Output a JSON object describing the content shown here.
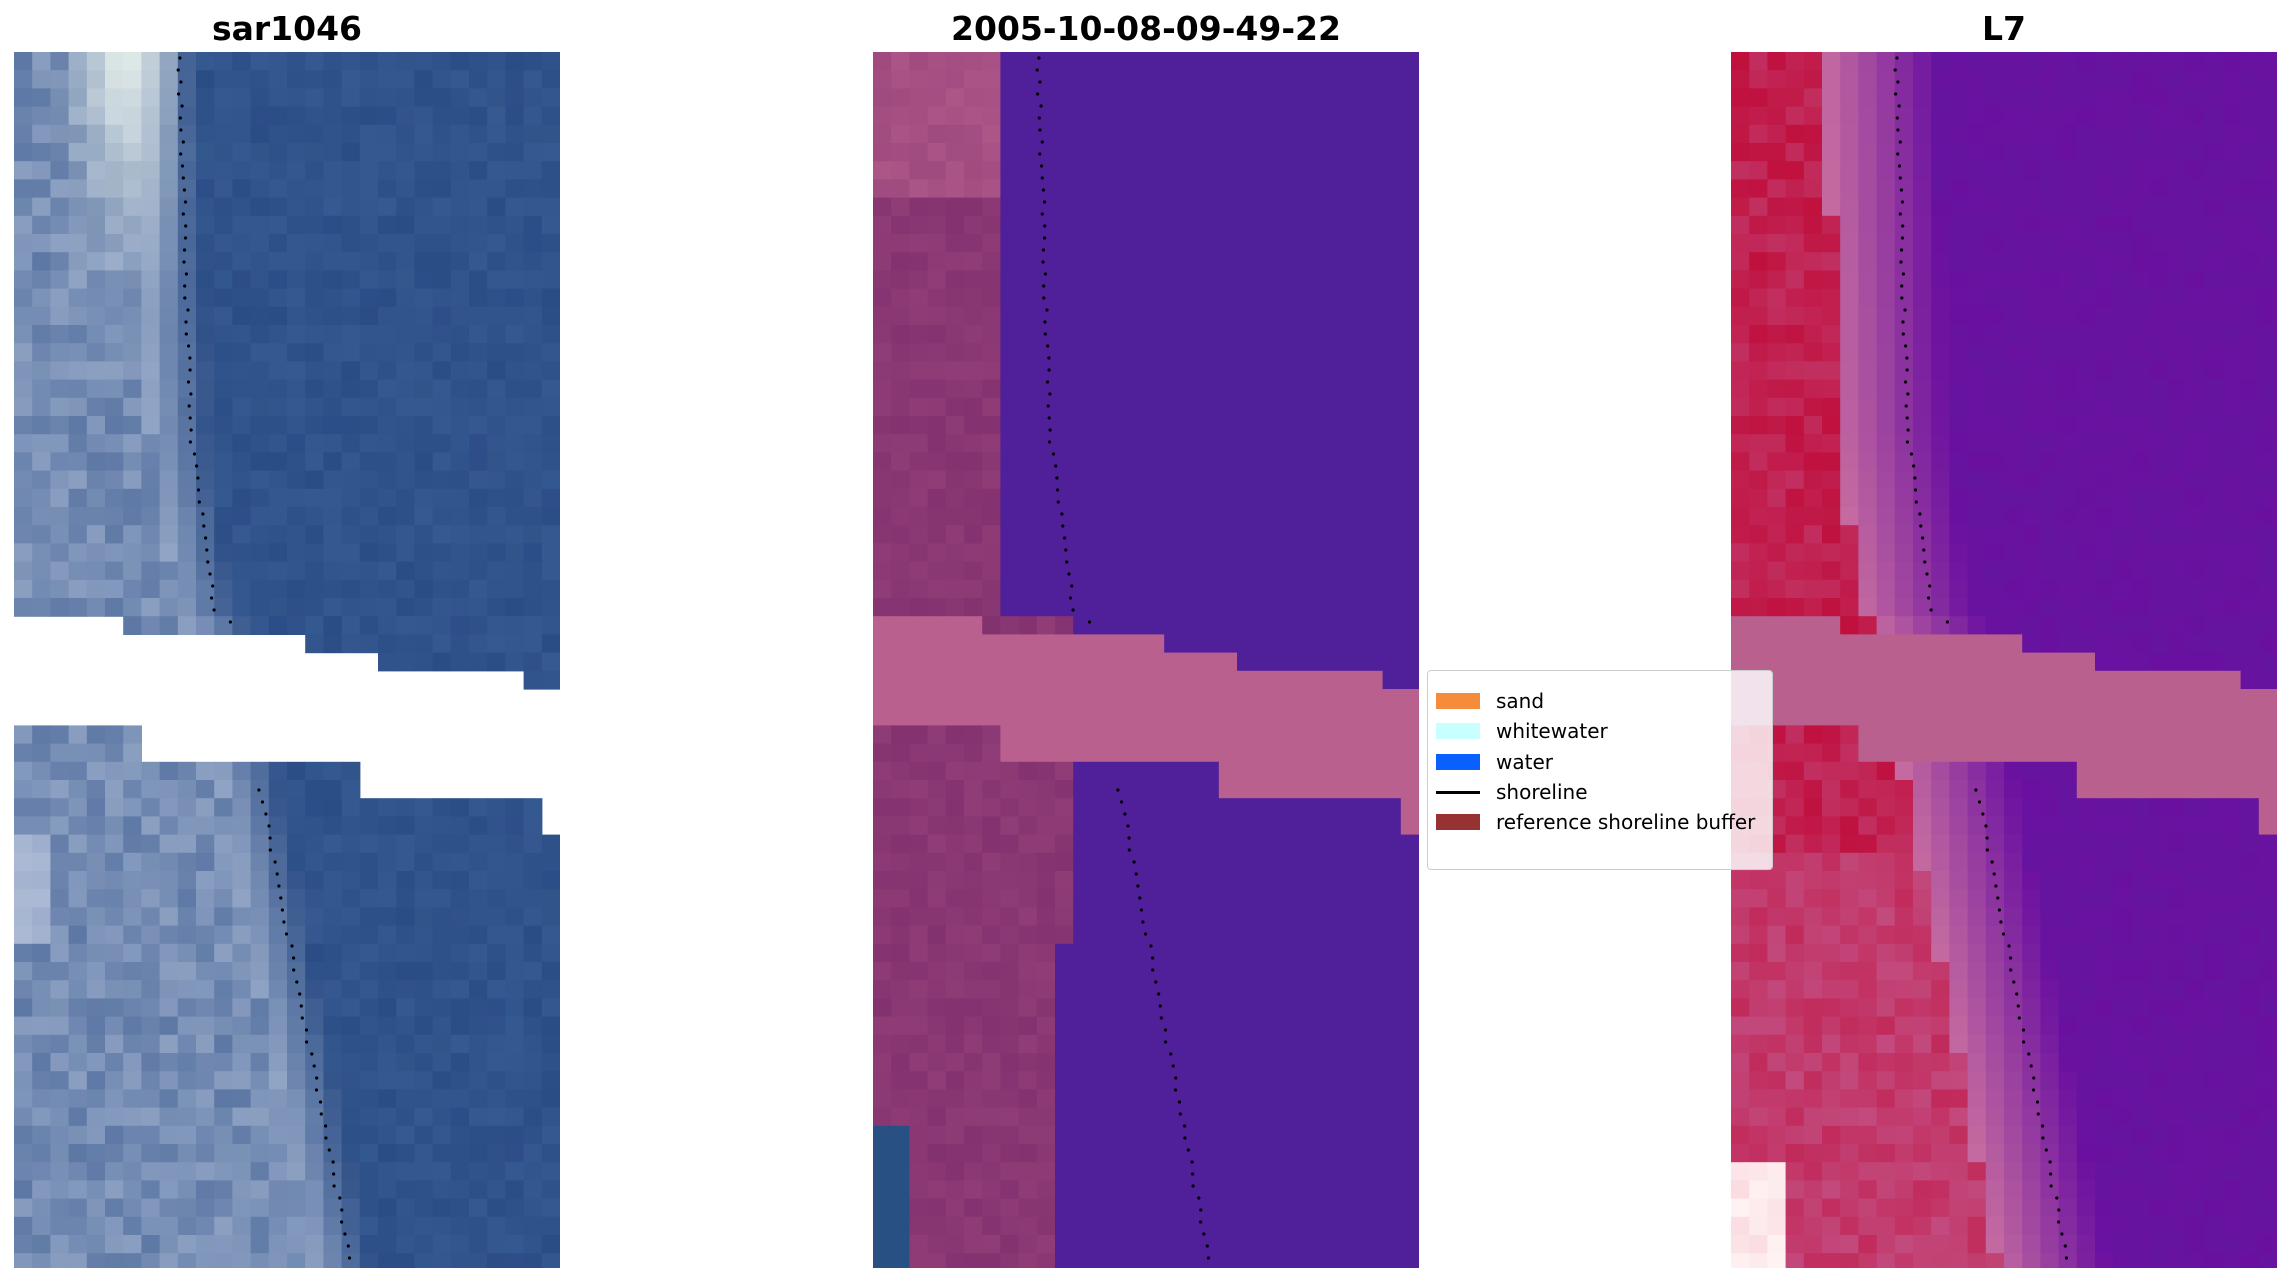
{
  "panels": [
    {
      "title": "sar1046",
      "kind": "rgb"
    },
    {
      "title": "2005-10-08-09-49-22",
      "kind": "classified"
    },
    {
      "title": "L7",
      "kind": "index"
    }
  ],
  "legend": {
    "items": [
      {
        "label": "sand",
        "color": "#f58c3c",
        "type": "patch"
      },
      {
        "label": "whitewater",
        "color": "#c8ffff",
        "type": "patch"
      },
      {
        "label": "water",
        "color": "#0a5fff",
        "type": "patch"
      },
      {
        "label": "shoreline",
        "color": "#000000",
        "type": "line"
      },
      {
        "label": "reference shoreline buffer",
        "color": "#963232",
        "type": "patch"
      }
    ]
  },
  "colors": {
    "rgb_water": "#2b4d86",
    "rgb_shore": "#8fa3c4",
    "rgb_bright": "#eef6ee",
    "class_water": "#50209a",
    "class_land": "#7a2a6a",
    "buffer_band": "#b9608f",
    "index_water": "#6a10a0",
    "index_land": "#c0103e",
    "index_shore": "#c46aa0"
  }
}
